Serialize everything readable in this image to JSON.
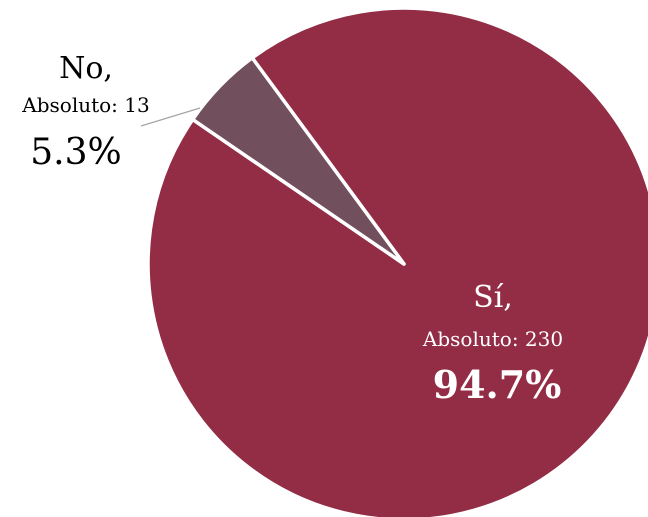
{
  "chart_data": {
    "type": "pie",
    "title": "",
    "legend": "none",
    "slices": [
      {
        "label": "Sí",
        "abs_text": "Absoluto: 230",
        "pct_text": "94.7%",
        "value": 230,
        "percent": 94.7,
        "color": "#932D45"
      },
      {
        "label": "No",
        "abs_text": "Absoluto: 13",
        "pct_text": "5.3%",
        "value": 13,
        "percent": 5.3,
        "color": "#724F5C"
      }
    ]
  },
  "labels": {
    "si_name": "Sí,",
    "si_abs": "Absoluto: 230",
    "si_pct": "94.7%",
    "no_name": "No,",
    "no_abs": "Absoluto: 13",
    "no_pct": "5.3%"
  }
}
